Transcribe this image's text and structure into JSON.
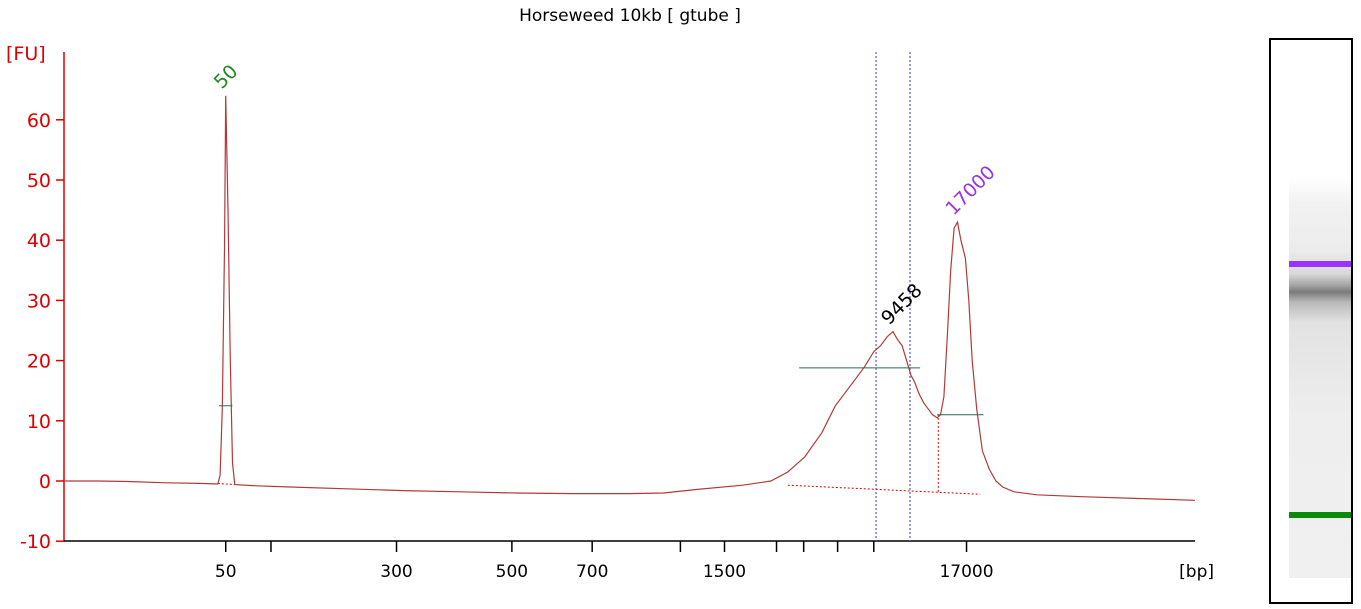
{
  "title": "Horseweed 10kb  [ gtube ]",
  "colors": {
    "axis": "#dd0000",
    "trace": "#b03a3a",
    "peak_lower": "#228822",
    "peak_upper": "#9933ee",
    "peak_label": "#000000",
    "marker_line": "#5555dd",
    "region_line": "#2d6b50",
    "lower_band": "#0a8a0a",
    "upper_band": "#9933ff"
  },
  "chart_data": {
    "type": "line",
    "title": "Horseweed 10kb  [ gtube ]",
    "yunit": "[FU]",
    "xunit": "[bp]",
    "ylim": [
      -10,
      65
    ],
    "yticks": [
      -10,
      0,
      10,
      20,
      30,
      40,
      50,
      60
    ],
    "xticks": [
      {
        "pos": 0.143,
        "label": "50"
      },
      {
        "pos": 0.183,
        "label": ""
      },
      {
        "pos": 0.294,
        "label": "300"
      },
      {
        "pos": 0.396,
        "label": "500"
      },
      {
        "pos": 0.467,
        "label": "700"
      },
      {
        "pos": 0.545,
        "label": ""
      },
      {
        "pos": 0.584,
        "label": "1500"
      },
      {
        "pos": 0.63,
        "label": ""
      },
      {
        "pos": 0.654,
        "label": ""
      },
      {
        "pos": 0.684,
        "label": ""
      },
      {
        "pos": 0.716,
        "label": ""
      },
      {
        "pos": 0.798,
        "label": "17000"
      }
    ],
    "trace": [
      [
        0.0,
        0.0
      ],
      [
        0.03,
        0.0
      ],
      [
        0.06,
        -0.1
      ],
      [
        0.09,
        -0.3
      ],
      [
        0.12,
        -0.4
      ],
      [
        0.136,
        -0.5
      ],
      [
        0.138,
        1.0
      ],
      [
        0.14,
        12.0
      ],
      [
        0.142,
        40.0
      ],
      [
        0.143,
        64.0
      ],
      [
        0.145,
        45.0
      ],
      [
        0.147,
        20.0
      ],
      [
        0.149,
        3.0
      ],
      [
        0.151,
        -0.6
      ],
      [
        0.17,
        -0.8
      ],
      [
        0.2,
        -1.0
      ],
      [
        0.25,
        -1.3
      ],
      [
        0.3,
        -1.6
      ],
      [
        0.35,
        -1.8
      ],
      [
        0.4,
        -2.0
      ],
      [
        0.45,
        -2.1
      ],
      [
        0.5,
        -2.1
      ],
      [
        0.53,
        -2.0
      ],
      [
        0.56,
        -1.4
      ],
      [
        0.6,
        -0.7
      ],
      [
        0.625,
        0.0
      ],
      [
        0.64,
        1.5
      ],
      [
        0.655,
        4.0
      ],
      [
        0.67,
        8.0
      ],
      [
        0.682,
        12.5
      ],
      [
        0.692,
        15.0
      ],
      [
        0.7,
        17.0
      ],
      [
        0.708,
        19.0
      ],
      [
        0.716,
        21.5
      ],
      [
        0.722,
        22.5
      ],
      [
        0.728,
        24.0
      ],
      [
        0.733,
        24.8
      ],
      [
        0.737,
        23.5
      ],
      [
        0.741,
        22.5
      ],
      [
        0.745,
        20.0
      ],
      [
        0.749,
        17.5
      ],
      [
        0.752,
        16.5
      ],
      [
        0.756,
        14.5
      ],
      [
        0.76,
        13.0
      ],
      [
        0.764,
        12.0
      ],
      [
        0.768,
        11.0
      ],
      [
        0.772,
        10.5
      ],
      [
        0.775,
        11.0
      ],
      [
        0.778,
        14.0
      ],
      [
        0.781,
        24.0
      ],
      [
        0.784,
        35.0
      ],
      [
        0.787,
        42.0
      ],
      [
        0.79,
        43.0
      ],
      [
        0.793,
        40.0
      ],
      [
        0.797,
        37.0
      ],
      [
        0.8,
        30.0
      ],
      [
        0.803,
        20.0
      ],
      [
        0.807,
        12.0
      ],
      [
        0.812,
        5.0
      ],
      [
        0.818,
        2.0
      ],
      [
        0.824,
        0.0
      ],
      [
        0.83,
        -1.0
      ],
      [
        0.84,
        -1.8
      ],
      [
        0.86,
        -2.3
      ],
      [
        0.9,
        -2.6
      ],
      [
        0.95,
        -2.9
      ],
      [
        1.0,
        -3.2
      ]
    ],
    "peak_labels": [
      {
        "x": 0.143,
        "y": 64.0,
        "text": "50",
        "role": "lower"
      },
      {
        "x": 0.79,
        "y": 43.0,
        "text": "17000",
        "role": "upper"
      },
      {
        "x": 0.733,
        "y": 24.8,
        "text": "9458",
        "role": "peak"
      }
    ],
    "markers": [
      0.718,
      0.748
    ],
    "region_lines": [
      {
        "x1": 0.137,
        "x2": 0.149,
        "y": 12.5
      },
      {
        "x1": 0.65,
        "x2": 0.757,
        "y": 18.8
      },
      {
        "x1": 0.772,
        "x2": 0.813,
        "y": 11.0
      }
    ],
    "baselines": [
      {
        "x1": 0.136,
        "y1": -0.4,
        "x2": 0.151,
        "y2": -0.6
      },
      {
        "x1": 0.64,
        "y1": -0.7,
        "x2": 0.81,
        "y2": -2.2
      }
    ],
    "dotted_verticals": [
      {
        "x": 0.773,
        "y1": -1.8,
        "y2": 11.0
      }
    ]
  },
  "gel": {
    "upper_band_frac": 0.218,
    "lower_band_frac": 0.842
  }
}
